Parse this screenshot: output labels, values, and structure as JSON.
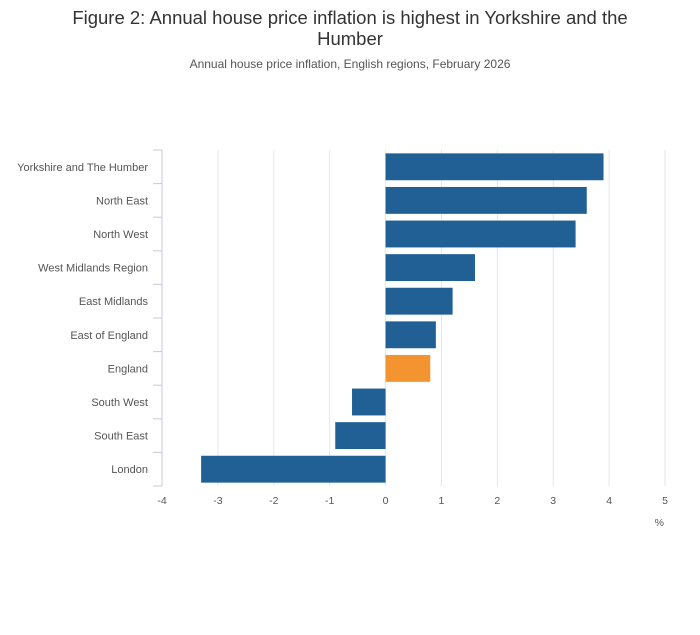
{
  "header": {
    "title": "Figure 2: Annual house price inflation is highest in Yorkshire and the Humber",
    "subtitle": "Annual house price inflation, English regions, February 2026"
  },
  "colors": {
    "bar_default": "#206095",
    "bar_highlight": "#F39431",
    "grid": "#e6e6e6",
    "axis": "#c8c8d8"
  },
  "chart_data": {
    "type": "bar",
    "orientation": "horizontal",
    "categories": [
      "Yorkshire and The Humber",
      "North East",
      "North West",
      "West Midlands Region",
      "East Midlands",
      "East of England",
      "England",
      "South West",
      "South East",
      "London"
    ],
    "values": [
      3.9,
      3.6,
      3.4,
      1.6,
      1.2,
      0.9,
      0.8,
      -0.6,
      -0.9,
      -3.3
    ],
    "highlight": [
      "England"
    ],
    "xlim": [
      -4,
      5
    ],
    "xticks": [
      -4,
      -3,
      -2,
      -1,
      0,
      1,
      2,
      3,
      4,
      5
    ],
    "xlabel": "%",
    "grid": true,
    "legend": "none"
  }
}
